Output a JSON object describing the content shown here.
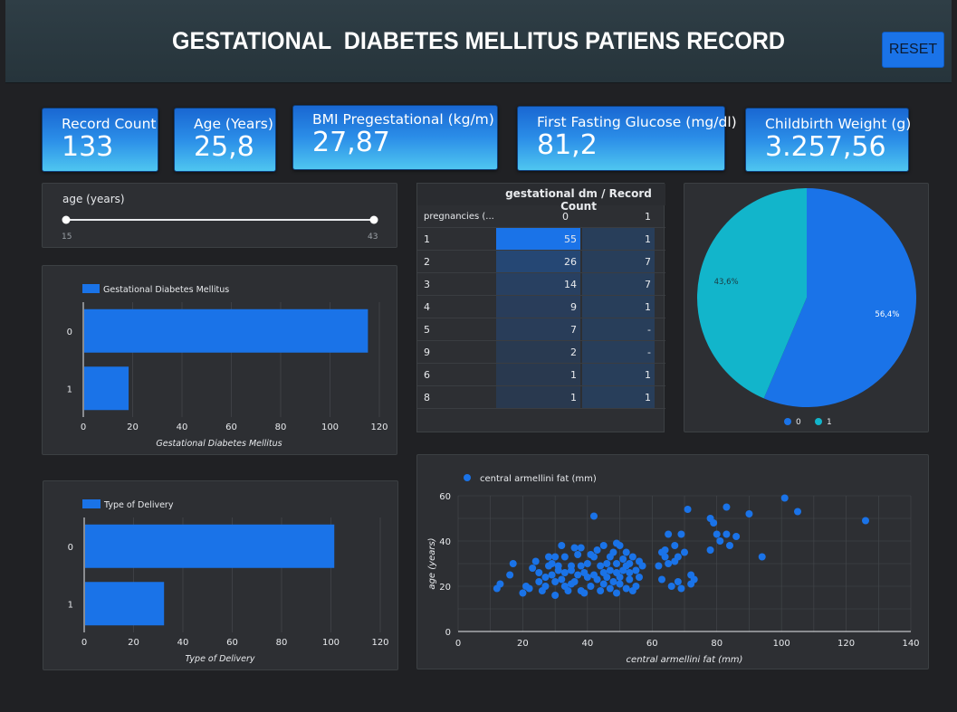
{
  "header": {
    "title": "GESTATIONAL  DIABETES MELLITUS PATIENS RECORD",
    "reset_label": "RESET"
  },
  "kpis": [
    {
      "label": "Record Count",
      "value": "133"
    },
    {
      "label": "Age (Years)",
      "value": "25,8"
    },
    {
      "label": "BMI Pregestational (kg/m)",
      "value": "27,87"
    },
    {
      "label": "First Fasting Glucose (mg/dl)",
      "value": "81,2"
    },
    {
      "label": "Childbirth Weight (g)",
      "value": "3.257,56"
    }
  ],
  "slider": {
    "label": "age (years)",
    "min": "15",
    "max": "43"
  },
  "colors": {
    "accent": "#1a73e8",
    "teal": "#12b5cb",
    "panel": "#2d2f33",
    "background": "#202124"
  },
  "table": {
    "header_title": "gestational dm / Record Count",
    "row_header": "pregnancies (...",
    "col_headers": [
      "0",
      "1"
    ],
    "rows": [
      {
        "label": "1",
        "v0": "55",
        "v1": "1",
        "n0": 55
      },
      {
        "label": "2",
        "v0": "26",
        "v1": "7",
        "n0": 26
      },
      {
        "label": "3",
        "v0": "14",
        "v1": "7",
        "n0": 14
      },
      {
        "label": "4",
        "v0": "9",
        "v1": "1",
        "n0": 9
      },
      {
        "label": "5",
        "v0": "7",
        "v1": "-",
        "n0": 7
      },
      {
        "label": "9",
        "v0": "2",
        "v1": "-",
        "n0": 2
      },
      {
        "label": "6",
        "v0": "1",
        "v1": "1",
        "n0": 1
      },
      {
        "label": "8",
        "v0": "1",
        "v1": "1",
        "n0": 1
      }
    ]
  },
  "chart_data": [
    {
      "type": "bar",
      "orientation": "horizontal",
      "legend": "Gestational Diabetes Mellitus",
      "categories": [
        "0",
        "1"
      ],
      "values": [
        115,
        18
      ],
      "xlabel": "Gestational Diabetes Mellitus",
      "xlim": [
        0,
        120
      ],
      "xticks": [
        "0",
        "20",
        "40",
        "60",
        "80",
        "100",
        "120"
      ]
    },
    {
      "type": "bar",
      "orientation": "horizontal",
      "legend": "Type of Delivery",
      "categories": [
        "0",
        "1"
      ],
      "values": [
        101,
        32
      ],
      "xlabel": "Type of Delivery",
      "xlim": [
        0,
        120
      ],
      "xticks": [
        "0",
        "20",
        "40",
        "60",
        "80",
        "100",
        "120"
      ]
    },
    {
      "type": "pie",
      "slices": [
        {
          "name": "0",
          "value": 56.4,
          "label": "56,4%",
          "color": "#1a73e8"
        },
        {
          "name": "1",
          "value": 43.6,
          "label": "43,6%",
          "color": "#12b5cb"
        }
      ],
      "legend_position": "bottom"
    },
    {
      "type": "scatter",
      "legend": "central armellini fat (mm)",
      "xlabel": "central armellini fat (mm)",
      "ylabel": "age (years)",
      "xlim": [
        0,
        140
      ],
      "ylim": [
        0,
        60
      ],
      "xticks": [
        "0",
        "20",
        "40",
        "60",
        "80",
        "100",
        "120",
        "140"
      ],
      "yticks": [
        "0",
        "20",
        "40",
        "60"
      ],
      "points": [
        [
          12,
          19
        ],
        [
          13,
          21
        ],
        [
          16,
          25
        ],
        [
          17,
          30
        ],
        [
          20,
          17
        ],
        [
          21,
          20
        ],
        [
          22,
          19
        ],
        [
          23,
          28
        ],
        [
          24,
          31
        ],
        [
          25,
          22
        ],
        [
          25,
          26
        ],
        [
          26,
          18
        ],
        [
          27,
          20
        ],
        [
          27,
          24
        ],
        [
          28,
          33
        ],
        [
          28,
          29
        ],
        [
          29,
          30
        ],
        [
          29,
          25
        ],
        [
          30,
          16
        ],
        [
          30,
          22
        ],
        [
          30,
          33
        ],
        [
          31,
          27
        ],
        [
          31,
          29
        ],
        [
          32,
          38
        ],
        [
          32,
          23
        ],
        [
          33,
          20
        ],
        [
          33,
          26
        ],
        [
          33,
          33
        ],
        [
          34,
          18
        ],
        [
          35,
          21
        ],
        [
          35,
          27
        ],
        [
          35,
          29
        ],
        [
          36,
          37
        ],
        [
          36,
          22
        ],
        [
          37,
          34
        ],
        [
          37,
          25
        ],
        [
          38,
          18
        ],
        [
          38,
          29
        ],
        [
          38,
          37
        ],
        [
          39,
          26
        ],
        [
          39,
          17
        ],
        [
          40,
          24
        ],
        [
          40,
          30
        ],
        [
          41,
          20
        ],
        [
          41,
          34
        ],
        [
          42,
          33
        ],
        [
          42,
          25
        ],
        [
          42,
          51
        ],
        [
          43,
          23
        ],
        [
          43,
          36
        ],
        [
          44,
          29
        ],
        [
          44,
          18
        ],
        [
          45,
          38
        ],
        [
          45,
          26
        ],
        [
          45,
          21
        ],
        [
          46,
          30
        ],
        [
          46,
          24
        ],
        [
          47,
          33
        ],
        [
          47,
          19
        ],
        [
          47,
          27
        ],
        [
          48,
          22
        ],
        [
          48,
          35
        ],
        [
          49,
          30
        ],
        [
          49,
          26
        ],
        [
          49,
          39
        ],
        [
          49,
          17
        ],
        [
          50,
          24
        ],
        [
          50,
          38
        ],
        [
          50,
          21
        ],
        [
          51,
          32
        ],
        [
          51,
          27
        ],
        [
          52,
          19
        ],
        [
          52,
          35
        ],
        [
          52,
          29
        ],
        [
          53,
          23
        ],
        [
          53,
          26
        ],
        [
          53,
          30
        ],
        [
          54,
          18
        ],
        [
          54,
          33
        ],
        [
          55,
          20
        ],
        [
          55,
          27
        ],
        [
          56,
          31
        ],
        [
          56,
          24
        ],
        [
          57,
          29
        ],
        [
          62,
          29
        ],
        [
          63,
          23
        ],
        [
          63,
          35
        ],
        [
          64,
          36
        ],
        [
          64,
          33
        ],
        [
          65,
          30
        ],
        [
          65,
          43
        ],
        [
          66,
          20
        ],
        [
          67,
          31
        ],
        [
          67,
          38
        ],
        [
          68,
          33
        ],
        [
          68,
          22
        ],
        [
          69,
          19
        ],
        [
          69,
          43
        ],
        [
          70,
          35
        ],
        [
          71,
          54
        ],
        [
          72,
          21
        ],
        [
          72,
          25
        ],
        [
          73,
          23
        ],
        [
          78,
          36
        ],
        [
          78,
          50
        ],
        [
          79,
          48
        ],
        [
          80,
          43
        ],
        [
          81,
          40
        ],
        [
          83,
          43
        ],
        [
          83,
          55
        ],
        [
          84,
          38
        ],
        [
          86,
          42
        ],
        [
          90,
          52
        ],
        [
          94,
          33
        ],
        [
          101,
          59
        ],
        [
          105,
          53
        ],
        [
          126,
          49
        ]
      ]
    }
  ]
}
